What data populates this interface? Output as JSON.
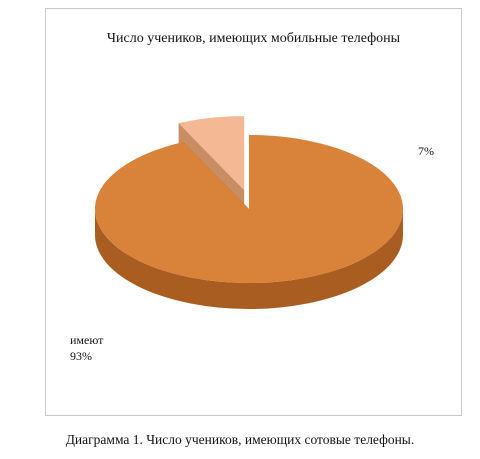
{
  "chart_data": {
    "type": "pie",
    "title": "Число учеников, имеющих мобильные телефоны",
    "slices": [
      {
        "label": "имеют",
        "value": 93,
        "value_label": "93%",
        "color": "#d9823a",
        "side_color": "#a95d20"
      },
      {
        "label": "",
        "value": 7,
        "value_label": "7%",
        "color": "#f4b895",
        "side_color": "#c98d66"
      }
    ],
    "style": "3d-exploded"
  },
  "caption": "Диаграмма 1. Число учеников, имеющих сотовые телефоны."
}
